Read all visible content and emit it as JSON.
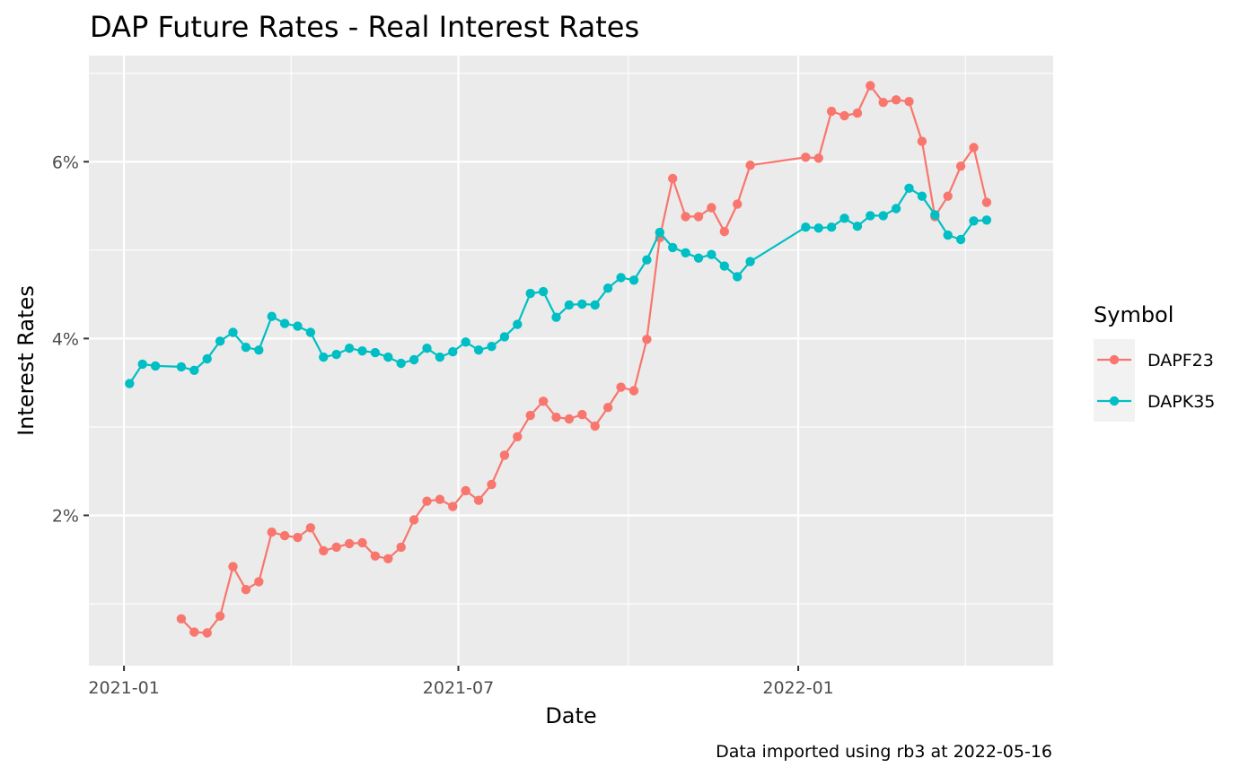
{
  "chart_data": {
    "type": "line",
    "title": "DAP Future Rates - Real Interest Rates",
    "xlabel": "Date",
    "ylabel": "Interest Rates",
    "caption": "Data imported using rb3 at 2022-05-16",
    "legend_title": "Symbol",
    "legend_position": "right",
    "grid": true,
    "x_ticks": [
      "2021-01",
      "2021-07",
      "2022-01"
    ],
    "y_ticks": [
      "2%",
      "4%",
      "6%"
    ],
    "ylim": [
      0.3,
      7.2
    ],
    "xlim": [
      "2020-12-13",
      "2022-05-19"
    ],
    "series": [
      {
        "name": "DAPF23",
        "color": "#F8766D",
        "points": [
          [
            "2021-02-01",
            0.83
          ],
          [
            "2021-02-08",
            0.68
          ],
          [
            "2021-02-15",
            0.67
          ],
          [
            "2021-02-22",
            0.86
          ],
          [
            "2021-03-01",
            1.42
          ],
          [
            "2021-03-08",
            1.16
          ],
          [
            "2021-03-15",
            1.25
          ],
          [
            "2021-03-22",
            1.81
          ],
          [
            "2021-03-29",
            1.77
          ],
          [
            "2021-04-05",
            1.75
          ],
          [
            "2021-04-12",
            1.86
          ],
          [
            "2021-04-19",
            1.6
          ],
          [
            "2021-04-26",
            1.64
          ],
          [
            "2021-05-03",
            1.68
          ],
          [
            "2021-05-10",
            1.69
          ],
          [
            "2021-05-17",
            1.54
          ],
          [
            "2021-05-24",
            1.51
          ],
          [
            "2021-05-31",
            1.64
          ],
          [
            "2021-06-07",
            1.95
          ],
          [
            "2021-06-14",
            2.16
          ],
          [
            "2021-06-21",
            2.18
          ],
          [
            "2021-06-28",
            2.1
          ],
          [
            "2021-07-05",
            2.28
          ],
          [
            "2021-07-12",
            2.17
          ],
          [
            "2021-07-19",
            2.35
          ],
          [
            "2021-07-26",
            2.68
          ],
          [
            "2021-08-02",
            2.89
          ],
          [
            "2021-08-09",
            3.13
          ],
          [
            "2021-08-16",
            3.29
          ],
          [
            "2021-08-23",
            3.11
          ],
          [
            "2021-08-30",
            3.09
          ],
          [
            "2021-09-06",
            3.14
          ],
          [
            "2021-09-13",
            3.01
          ],
          [
            "2021-09-20",
            3.22
          ],
          [
            "2021-09-27",
            3.45
          ],
          [
            "2021-10-04",
            3.41
          ],
          [
            "2021-10-11",
            3.99
          ],
          [
            "2021-10-18",
            5.14
          ],
          [
            "2021-10-25",
            5.81
          ],
          [
            "2021-11-01",
            5.38
          ],
          [
            "2021-11-08",
            5.38
          ],
          [
            "2021-11-15",
            5.48
          ],
          [
            "2021-11-22",
            5.21
          ],
          [
            "2021-11-29",
            5.52
          ],
          [
            "2021-12-06",
            5.96
          ],
          [
            "2022-01-05",
            6.05
          ],
          [
            "2022-01-12",
            6.04
          ],
          [
            "2022-01-19",
            6.57
          ],
          [
            "2022-01-26",
            6.52
          ],
          [
            "2022-02-02",
            6.55
          ],
          [
            "2022-02-09",
            6.86
          ],
          [
            "2022-02-16",
            6.67
          ],
          [
            "2022-02-23",
            6.7
          ],
          [
            "2022-03-02",
            6.68
          ],
          [
            "2022-03-09",
            6.23
          ],
          [
            "2022-03-16",
            5.38
          ],
          [
            "2022-03-23",
            5.61
          ],
          [
            "2022-03-30",
            5.95
          ],
          [
            "2022-04-06",
            6.16
          ],
          [
            "2022-04-13",
            5.54
          ]
        ]
      },
      {
        "name": "DAPK35",
        "color": "#00BFC4",
        "points": [
          [
            "2021-01-04",
            3.49
          ],
          [
            "2021-01-11",
            3.71
          ],
          [
            "2021-01-18",
            3.69
          ],
          [
            "2021-02-01",
            3.68
          ],
          [
            "2021-02-08",
            3.64
          ],
          [
            "2021-02-15",
            3.77
          ],
          [
            "2021-02-22",
            3.97
          ],
          [
            "2021-03-01",
            4.07
          ],
          [
            "2021-03-08",
            3.9
          ],
          [
            "2021-03-15",
            3.87
          ],
          [
            "2021-03-22",
            4.25
          ],
          [
            "2021-03-29",
            4.17
          ],
          [
            "2021-04-05",
            4.14
          ],
          [
            "2021-04-12",
            4.07
          ],
          [
            "2021-04-19",
            3.79
          ],
          [
            "2021-04-26",
            3.82
          ],
          [
            "2021-05-03",
            3.89
          ],
          [
            "2021-05-10",
            3.86
          ],
          [
            "2021-05-17",
            3.84
          ],
          [
            "2021-05-24",
            3.79
          ],
          [
            "2021-05-31",
            3.72
          ],
          [
            "2021-06-07",
            3.76
          ],
          [
            "2021-06-14",
            3.89
          ],
          [
            "2021-06-21",
            3.79
          ],
          [
            "2021-06-28",
            3.85
          ],
          [
            "2021-07-05",
            3.96
          ],
          [
            "2021-07-12",
            3.87
          ],
          [
            "2021-07-19",
            3.91
          ],
          [
            "2021-07-26",
            4.02
          ],
          [
            "2021-08-02",
            4.16
          ],
          [
            "2021-08-09",
            4.51
          ],
          [
            "2021-08-16",
            4.53
          ],
          [
            "2021-08-23",
            4.24
          ],
          [
            "2021-08-30",
            4.38
          ],
          [
            "2021-09-06",
            4.39
          ],
          [
            "2021-09-13",
            4.38
          ],
          [
            "2021-09-20",
            4.57
          ],
          [
            "2021-09-27",
            4.69
          ],
          [
            "2021-10-04",
            4.66
          ],
          [
            "2021-10-11",
            4.89
          ],
          [
            "2021-10-18",
            5.2
          ],
          [
            "2021-10-25",
            5.03
          ],
          [
            "2021-11-01",
            4.97
          ],
          [
            "2021-11-08",
            4.91
          ],
          [
            "2021-11-15",
            4.95
          ],
          [
            "2021-11-22",
            4.82
          ],
          [
            "2021-11-29",
            4.7
          ],
          [
            "2021-12-06",
            4.87
          ],
          [
            "2022-01-05",
            5.26
          ],
          [
            "2022-01-12",
            5.25
          ],
          [
            "2022-01-19",
            5.26
          ],
          [
            "2022-01-26",
            5.36
          ],
          [
            "2022-02-02",
            5.27
          ],
          [
            "2022-02-09",
            5.39
          ],
          [
            "2022-02-16",
            5.39
          ],
          [
            "2022-02-23",
            5.47
          ],
          [
            "2022-03-02",
            5.7
          ],
          [
            "2022-03-09",
            5.61
          ],
          [
            "2022-03-16",
            5.4
          ],
          [
            "2022-03-23",
            5.17
          ],
          [
            "2022-03-30",
            5.12
          ],
          [
            "2022-04-06",
            5.33
          ],
          [
            "2022-04-13",
            5.34
          ]
        ]
      }
    ]
  }
}
